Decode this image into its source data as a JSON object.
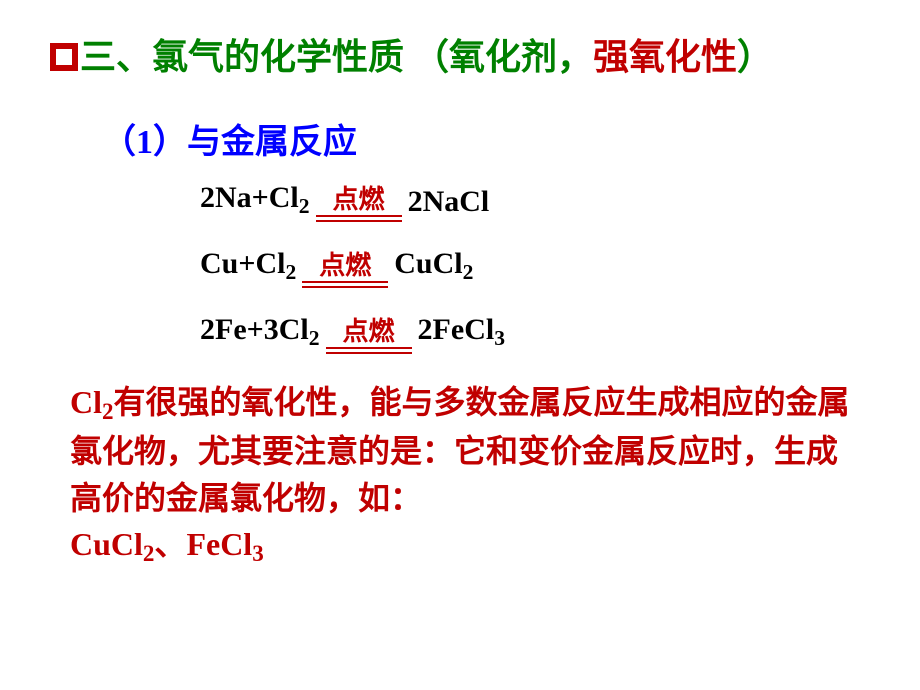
{
  "colors": {
    "green": "#008000",
    "red": "#c00000",
    "blue": "#0000ff",
    "black": "#000000",
    "arrow": "#c00000"
  },
  "title": {
    "part1": "三、氯气的化学性质 （氧化剂，",
    "part2": "强氧化性",
    "part3": "）"
  },
  "sub1": "（1）与金属反应",
  "condition_label": "点燃",
  "eq1": {
    "left": "2Na+Cl",
    "left_sub": "2",
    "right_pre": " 2NaCl"
  },
  "eq2": {
    "left": "Cu+Cl",
    "left_sub": "2",
    "right_pre": " CuCl",
    "right_sub": "2"
  },
  "eq3": {
    "left": "2Fe+3Cl",
    "left_sub": "2",
    "right_pre": "  2FeCl",
    "right_sub": "3"
  },
  "summary": {
    "s1a": "Cl",
    "s1a_sub": "2",
    "s1b": "有很强的氧化性，能与多数金属反应生成相应的金属氯化物，尤其要注意的是：它和变价金属反应时，生成高价的金属氯化物，如：",
    "s2a": "CuCl",
    "s2a_sub": "2",
    "s2b": "、",
    "s2c": "FeCl",
    "s2c_sub": "3"
  }
}
